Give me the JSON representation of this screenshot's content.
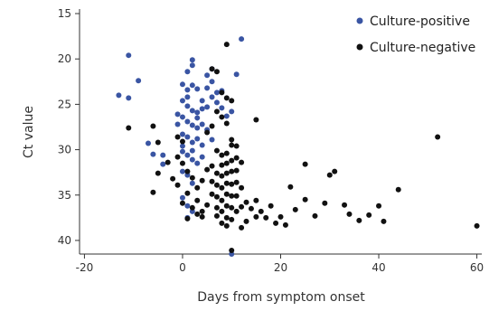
{
  "chart_data": {
    "type": "scatter",
    "title": "",
    "xlabel": "Days from symptom onset",
    "ylabel": "Ct value",
    "xlim": [
      -21,
      61
    ],
    "ylim": [
      14.5,
      41.5
    ],
    "y_inverted": true,
    "x_ticks": [
      "-20",
      "0",
      "20",
      "40",
      "60"
    ],
    "y_ticks": [
      "15",
      "20",
      "25",
      "30",
      "35",
      "40"
    ],
    "grid": false,
    "legend_position": "top-right",
    "series": [
      {
        "name": "Culture-positive",
        "color": "#3a55a3",
        "points": [
          [
            12,
            17.8
          ],
          [
            -11,
            19.6
          ],
          [
            -9,
            22.4
          ],
          [
            -13,
            24
          ],
          [
            -11,
            24.3
          ],
          [
            -7,
            29.3
          ],
          [
            -6,
            30.5
          ],
          [
            -4,
            30.6
          ],
          [
            -4,
            31.6
          ],
          [
            0,
            22.8
          ],
          [
            1,
            21.4
          ],
          [
            2,
            20.1
          ],
          [
            2,
            20.7
          ],
          [
            5,
            21.8
          ],
          [
            6,
            21.1
          ],
          [
            6,
            22.5
          ],
          [
            11,
            21.7
          ],
          [
            8,
            23.5
          ],
          [
            3,
            23.3
          ],
          [
            1,
            24.2
          ],
          [
            0,
            24.6
          ],
          [
            1,
            25.2
          ],
          [
            2,
            25.7
          ],
          [
            3,
            25.9
          ],
          [
            4,
            25.5
          ],
          [
            5,
            25.3
          ],
          [
            6,
            24.2
          ],
          [
            7,
            23.7
          ],
          [
            7,
            24.8
          ],
          [
            8,
            25.4
          ],
          [
            9,
            26.3
          ],
          [
            10,
            25.8
          ],
          [
            0,
            26.4
          ],
          [
            1,
            26.9
          ],
          [
            2,
            27.3
          ],
          [
            3,
            27.6
          ],
          [
            4,
            27.2
          ],
          [
            5,
            27.8
          ],
          [
            0,
            28.3
          ],
          [
            1,
            28.6
          ],
          [
            2,
            29.2
          ],
          [
            3,
            28.8
          ],
          [
            4,
            29.5
          ],
          [
            6,
            28.9
          ],
          [
            0,
            30.2
          ],
          [
            1,
            30.6
          ],
          [
            2,
            31.1
          ],
          [
            3,
            31.5
          ],
          [
            4,
            30.8
          ],
          [
            0,
            32.4
          ],
          [
            2,
            33.7
          ],
          [
            0,
            35.3
          ],
          [
            1,
            36.2
          ],
          [
            1,
            37.5
          ],
          [
            2,
            36.8
          ],
          [
            10,
            41.5
          ],
          [
            -1,
            26.1
          ],
          [
            -1,
            27.2
          ],
          [
            1,
            23.4
          ],
          [
            2,
            22.9
          ],
          [
            5,
            23.2
          ],
          [
            4,
            24.6
          ],
          [
            3,
            26.5
          ],
          [
            0,
            29.6
          ],
          [
            2,
            30.1
          ],
          [
            1,
            32.8
          ]
        ]
      },
      {
        "name": "Culture-negative",
        "color": "#111111",
        "points": [
          [
            9,
            18.4
          ],
          [
            6,
            21.1
          ],
          [
            7,
            21.4
          ],
          [
            8,
            23.7
          ],
          [
            9,
            24.3
          ],
          [
            10,
            24.6
          ],
          [
            7,
            25.8
          ],
          [
            8,
            26.4
          ],
          [
            9,
            27.1
          ],
          [
            6,
            27.4
          ],
          [
            5,
            28.1
          ],
          [
            10,
            28.9
          ],
          [
            11,
            29.6
          ],
          [
            -11,
            27.6
          ],
          [
            -6,
            27.4
          ],
          [
            -5,
            29.2
          ],
          [
            -1,
            28.6
          ],
          [
            0,
            29.1
          ],
          [
            -1,
            30.8
          ],
          [
            -5,
            32.6
          ],
          [
            -6,
            34.7
          ],
          [
            0,
            31.5
          ],
          [
            1,
            32.4
          ],
          [
            -1,
            33.9
          ],
          [
            1,
            34.8
          ],
          [
            0,
            35.9
          ],
          [
            2,
            36.4
          ],
          [
            1,
            37.6
          ],
          [
            3,
            37.1
          ],
          [
            4,
            37.4
          ],
          [
            5,
            36.1
          ],
          [
            3,
            34.2
          ],
          [
            4,
            33.4
          ],
          [
            5,
            32.2
          ],
          [
            6,
            31.8
          ],
          [
            7,
            30.1
          ],
          [
            6,
            33.5
          ],
          [
            6,
            34.9
          ],
          [
            7,
            32.6
          ],
          [
            7,
            33.9
          ],
          [
            7,
            35.2
          ],
          [
            7,
            36.4
          ],
          [
            7,
            37.3
          ],
          [
            8,
            30.6
          ],
          [
            8,
            31.7
          ],
          [
            8,
            32.9
          ],
          [
            8,
            34.2
          ],
          [
            8,
            35.6
          ],
          [
            8,
            36.8
          ],
          [
            8,
            38.1
          ],
          [
            9,
            30.4
          ],
          [
            9,
            31.5
          ],
          [
            9,
            32.6
          ],
          [
            9,
            33.7
          ],
          [
            9,
            34.9
          ],
          [
            9,
            36.2
          ],
          [
            9,
            37.5
          ],
          [
            9,
            38.4
          ],
          [
            10,
            29.5
          ],
          [
            10,
            31.2
          ],
          [
            10,
            32.4
          ],
          [
            10,
            33.8
          ],
          [
            10,
            35.1
          ],
          [
            10,
            36.4
          ],
          [
            10,
            37.7
          ],
          [
            11,
            30.9
          ],
          [
            11,
            32.3
          ],
          [
            11,
            33.6
          ],
          [
            11,
            35.1
          ],
          [
            11,
            36.8
          ],
          [
            12,
            31.4
          ],
          [
            12,
            34.2
          ],
          [
            12,
            36.3
          ],
          [
            12,
            38.6
          ],
          [
            13,
            35.8
          ],
          [
            13,
            37.9
          ],
          [
            14,
            36.5
          ],
          [
            15,
            26.7
          ],
          [
            15,
            35.6
          ],
          [
            15,
            37.4
          ],
          [
            16,
            36.8
          ],
          [
            17,
            37.5
          ],
          [
            18,
            36.2
          ],
          [
            19,
            38.1
          ],
          [
            20,
            37.4
          ],
          [
            21,
            38.3
          ],
          [
            22,
            34.1
          ],
          [
            23,
            36.6
          ],
          [
            25,
            31.6
          ],
          [
            25,
            35.5
          ],
          [
            27,
            37.3
          ],
          [
            29,
            35.9
          ],
          [
            30,
            32.8
          ],
          [
            31,
            32.4
          ],
          [
            33,
            36.1
          ],
          [
            34,
            37.1
          ],
          [
            36,
            37.8
          ],
          [
            38,
            37.2
          ],
          [
            40,
            36.2
          ],
          [
            41,
            37.9
          ],
          [
            44,
            34.4
          ],
          [
            52,
            28.6
          ],
          [
            60,
            38.4
          ],
          [
            10,
            41.1
          ],
          [
            -3,
            31.4
          ],
          [
            -2,
            33.2
          ],
          [
            2,
            33.1
          ],
          [
            3,
            35.6
          ],
          [
            4,
            36.8
          ]
        ]
      }
    ]
  }
}
